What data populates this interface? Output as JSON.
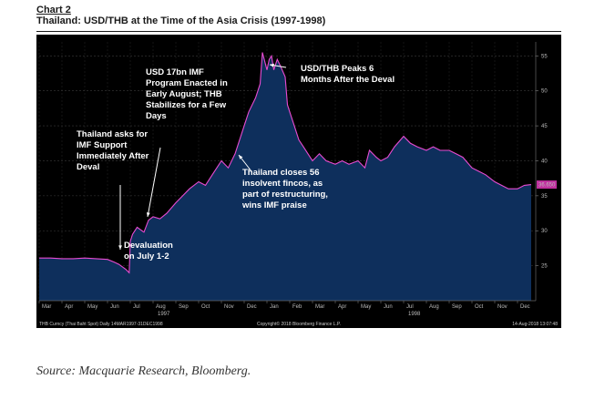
{
  "header": {
    "chart_number": "Chart 2",
    "subtitle": "Thailand: USD/THB at the Time of the Asia Crisis (1997-1998)"
  },
  "source": "Source: Macquarie Research, Bloomberg.",
  "footer": {
    "left": "THB Curncy (Thai Baht Spot)  Daily 14MAR1997-31DEC1998",
    "center": "Copyright© 2018 Bloomberg Finance L.P.",
    "right": "14-Aug-2018 13:07:48"
  },
  "colors": {
    "background": "#000000",
    "line": "#e84bd1",
    "fill": "#0e2f5c",
    "callout_bg": "#c0309f"
  },
  "chart_data": {
    "type": "area",
    "title": "Thailand: USD/THB at the Time of the Asia Crisis (1997-1998)",
    "ylim": [
      20,
      57
    ],
    "y_ticks": [
      25,
      30,
      35,
      40,
      45,
      50,
      55
    ],
    "last_value_label": "36.650",
    "x_months": [
      "Mar",
      "Apr",
      "May",
      "Jun",
      "Jul",
      "Aug",
      "Sep",
      "Oct",
      "Nov",
      "Dec",
      "Jan",
      "Feb",
      "Mar",
      "Apr",
      "May",
      "Jun",
      "Jul",
      "Aug",
      "Sep",
      "Oct",
      "Nov",
      "Dec"
    ],
    "x_years": [
      {
        "label": "1997",
        "month_index": 5
      },
      {
        "label": "1998",
        "month_index": 16
      }
    ],
    "series": [
      {
        "x": [
          0,
          0.5,
          1,
          1.5,
          2,
          2.5,
          3,
          3.3,
          3.5,
          3.8,
          3.95,
          4.0,
          4.1,
          4.3,
          4.6,
          4.8,
          5,
          5.3,
          5.6,
          6,
          6.3,
          6.6,
          7,
          7.3,
          7.6,
          8,
          8.3,
          8.6,
          9,
          9.2,
          9.5,
          9.7,
          9.8,
          10,
          10.1,
          10.2,
          10.3,
          10.45,
          10.6,
          10.8,
          10.9,
          11,
          11.2,
          11.4,
          11.6,
          11.8,
          12,
          12.3,
          12.6,
          13,
          13.3,
          13.6,
          14,
          14.3,
          14.5,
          14.8,
          15,
          15.3,
          15.6,
          16,
          16.3,
          16.6,
          17,
          17.3,
          17.6,
          18,
          18.3,
          18.6,
          19,
          19.3,
          19.6,
          20,
          20.3,
          20.6,
          21,
          21.3,
          21.6
        ],
        "y": [
          26.1,
          26.1,
          26.0,
          26.0,
          26.1,
          26.0,
          25.9,
          25.5,
          25.2,
          24.5,
          24.0,
          28.5,
          29.5,
          30.5,
          29.8,
          31.5,
          32.0,
          31.7,
          32.5,
          34.0,
          35.0,
          36.0,
          37.0,
          36.5,
          38.0,
          40.0,
          39.0,
          41.0,
          45.0,
          47.0,
          49.0,
          51.0,
          55.5,
          53.0,
          54.5,
          55.0,
          53.0,
          54.5,
          53.5,
          52.0,
          48.0,
          47.0,
          45.0,
          43.0,
          42.0,
          41.0,
          40.0,
          41.0,
          40.0,
          39.5,
          40.0,
          39.5,
          40.0,
          39.0,
          41.5,
          40.5,
          40.0,
          40.5,
          42.0,
          43.5,
          42.5,
          42.0,
          41.5,
          42.0,
          41.5,
          41.5,
          41.0,
          40.5,
          39.0,
          38.5,
          38.0,
          37.0,
          36.5,
          36.0,
          36.0,
          36.5,
          36.6
        ]
      }
    ],
    "annotations": [
      {
        "lines": [
          "Thailand asks for",
          "IMF Support",
          "Immediately After",
          "Deval"
        ]
      },
      {
        "lines": [
          "USD 17bn IMF",
          "Program Enacted in",
          "Early August; THB",
          "Stabilizes for a Few",
          "Days"
        ]
      },
      {
        "lines": [
          "USD/THB Peaks 6",
          "Months After the Deval"
        ]
      },
      {
        "lines": [
          "Thailand closes 56",
          "insolvent fincos, as",
          "part of restructuring,",
          "wins IMF praise"
        ]
      },
      {
        "lines": [
          "Devaluation",
          "on July 1-2"
        ]
      }
    ]
  }
}
